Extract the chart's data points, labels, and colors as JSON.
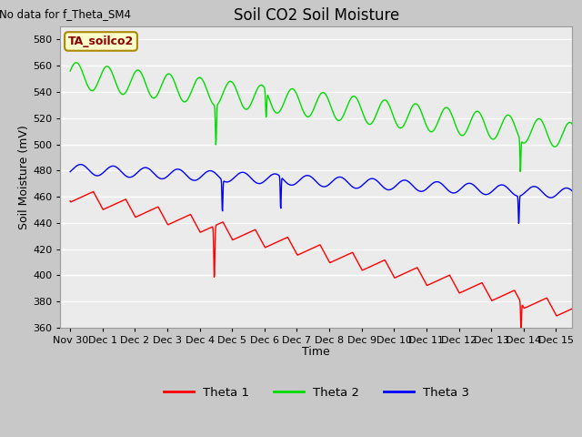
{
  "title": "Soil CO2 Soil Moisture",
  "xlabel": "Time",
  "ylabel": "Soil Moisture (mV)",
  "no_data_text": "No data for f_Theta_SM4",
  "legend_label": "TA_soilco2",
  "ylim": [
    360,
    590
  ],
  "yticks": [
    360,
    380,
    400,
    420,
    440,
    460,
    480,
    500,
    520,
    540,
    560,
    580
  ],
  "fig_bg_color": "#c8c8c8",
  "plot_bg_color": "#ebebeb",
  "grid_color": "#ffffff",
  "legend_entries": [
    "Theta 1",
    "Theta 2",
    "Theta 3"
  ],
  "legend_colors": [
    "#ff0000",
    "#00dd00",
    "#0000ff"
  ],
  "title_fontsize": 12,
  "axis_fontsize": 9,
  "tick_fontsize": 8
}
